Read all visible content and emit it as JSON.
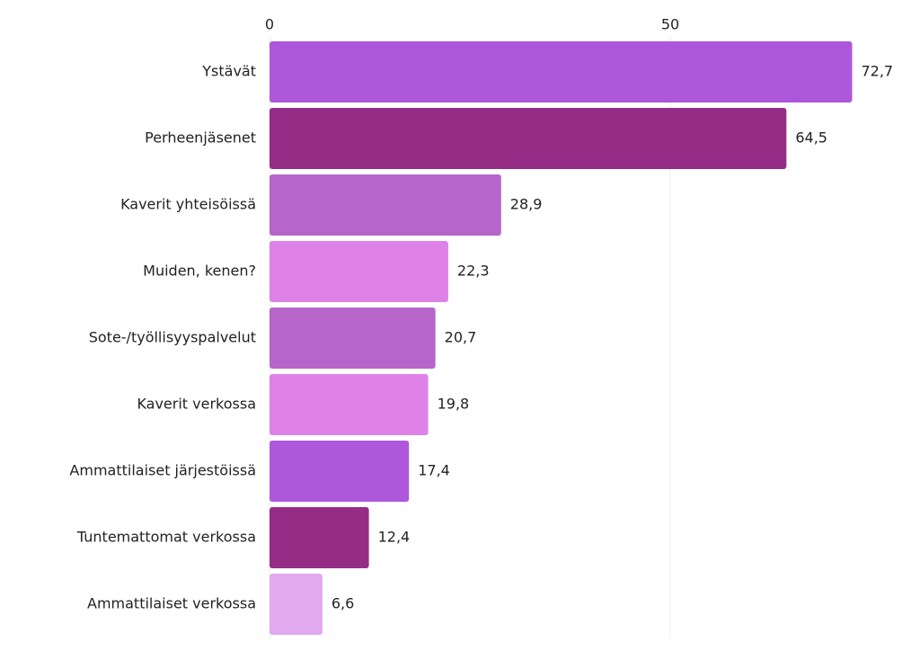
{
  "chart_data": {
    "type": "hbar",
    "categories": [
      "Ystävät",
      "Perheenjäsenet",
      "Kaverit yhteisöissä",
      "Muiden, kenen?",
      "Sote-/työllisyyspalvelut",
      "Kaverit verkossa",
      "Ammattilaiset järjestöissä",
      "Tuntemattomat verkossa",
      "Ammattilaiset verkossa"
    ],
    "values": [
      72.7,
      64.5,
      28.9,
      22.3,
      20.7,
      19.8,
      17.4,
      12.4,
      6.6
    ],
    "value_labels": [
      "72,7",
      "64,5",
      "28,9",
      "22,3",
      "20,7",
      "19,8",
      "17,4",
      "12,4",
      "6,6"
    ],
    "colors": [
      "#ad57db",
      "#952d87",
      "#b665cb",
      "#de82e8",
      "#b665cb",
      "#de82e8",
      "#ad57db",
      "#952d87",
      "#e2a9ee"
    ],
    "xlim": [
      0,
      80
    ],
    "xticks": [
      0,
      50
    ],
    "grid": true
  }
}
